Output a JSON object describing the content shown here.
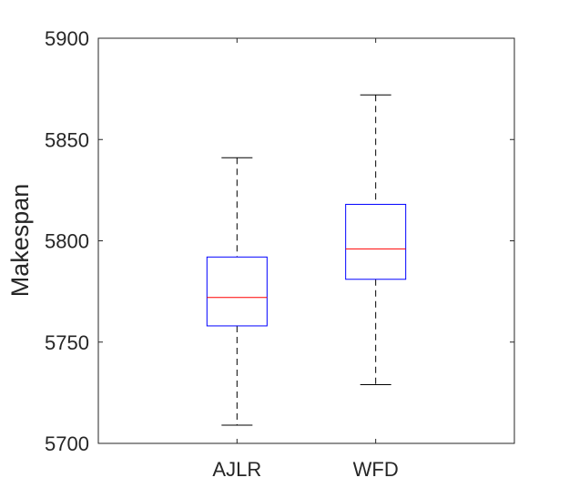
{
  "chart_data": {
    "type": "box",
    "ylabel": "Makespan",
    "xlabel": "",
    "ylim": [
      5700,
      5900
    ],
    "yticks": [
      5700,
      5750,
      5800,
      5850,
      5900
    ],
    "categories": [
      "AJLR",
      "WFD"
    ],
    "boxes": [
      {
        "category": "AJLR",
        "min": 5709,
        "q1": 5758,
        "median": 5772,
        "q3": 5792,
        "max": 5841
      },
      {
        "category": "WFD",
        "min": 5729,
        "q1": 5781,
        "median": 5796,
        "q3": 5818,
        "max": 5872
      }
    ],
    "colors": {
      "box": "#0000ff",
      "median": "#ff0000",
      "whisker": "#000000",
      "axis": "#262626"
    },
    "grid": false
  }
}
